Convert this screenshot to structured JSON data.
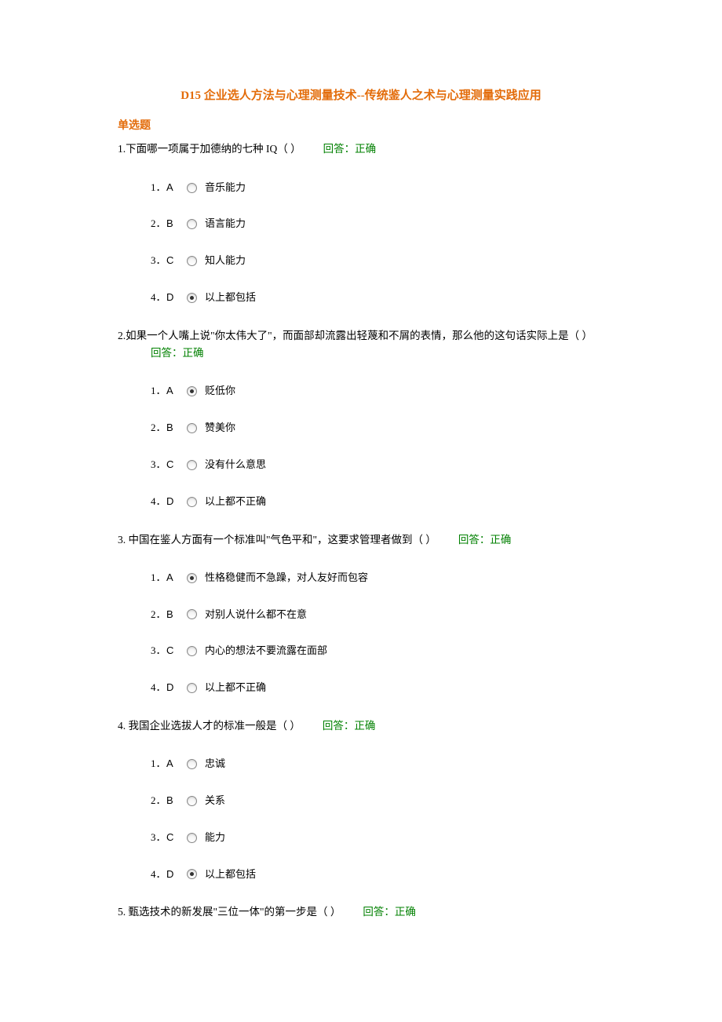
{
  "title": "D15 企业选人方法与心理测量技术--传统鉴人之术与心理测量实践应用",
  "section_header": "单选题",
  "answer_correct": "回答：正确",
  "questions": [
    {
      "num": "1.",
      "text": "下面哪一项属于加德纳的七种 IQ（ ）",
      "answer_inline": true,
      "options": [
        {
          "n": "1．",
          "letter": "A",
          "text": "音乐能力",
          "checked": false
        },
        {
          "n": "2．",
          "letter": "B",
          "text": "语言能力",
          "checked": false
        },
        {
          "n": "3．",
          "letter": "C",
          "text": "知人能力",
          "checked": false
        },
        {
          "n": "4．",
          "letter": "D",
          "text": "以上都包括",
          "checked": true
        }
      ]
    },
    {
      "num": "2.",
      "text": "如果一个人嘴上说\"你太伟大了\"，而面部却流露出轻蔑和不屑的表情，那么他的这句话实际上是（ ）",
      "answer_inline": false,
      "options": [
        {
          "n": "1．",
          "letter": "A",
          "text": "贬低你",
          "checked": true
        },
        {
          "n": "2．",
          "letter": "B",
          "text": "赞美你",
          "checked": false
        },
        {
          "n": "3．",
          "letter": "C",
          "text": "没有什么意思",
          "checked": false
        },
        {
          "n": "4．",
          "letter": "D",
          "text": "以上都不正确",
          "checked": false
        }
      ]
    },
    {
      "num": "3.",
      "text": " 中国在鉴人方面有一个标准叫\"气色平和\"，这要求管理者做到（ ）",
      "answer_inline": true,
      "options": [
        {
          "n": "1．",
          "letter": "A",
          "text": "性格稳健而不急躁，对人友好而包容",
          "checked": true
        },
        {
          "n": "2．",
          "letter": "B",
          "text": "对别人说什么都不在意",
          "checked": false
        },
        {
          "n": "3．",
          "letter": "C",
          "text": "内心的想法不要流露在面部",
          "checked": false
        },
        {
          "n": "4．",
          "letter": "D",
          "text": "以上都不正确",
          "checked": false
        }
      ]
    },
    {
      "num": "4.",
      "text": " 我国企业选拔人才的标准一般是（ ）",
      "answer_inline": true,
      "options": [
        {
          "n": "1．",
          "letter": "A",
          "text": "忠诚",
          "checked": false
        },
        {
          "n": "2．",
          "letter": "B",
          "text": "关系",
          "checked": false
        },
        {
          "n": "3．",
          "letter": "C",
          "text": "能力",
          "checked": false
        },
        {
          "n": "4．",
          "letter": "D",
          "text": "以上都包括",
          "checked": true
        }
      ]
    },
    {
      "num": "5.",
      "text": " 甄选技术的新发展\"三位一体\"的第一步是（ ）",
      "answer_inline": true,
      "options": []
    }
  ]
}
